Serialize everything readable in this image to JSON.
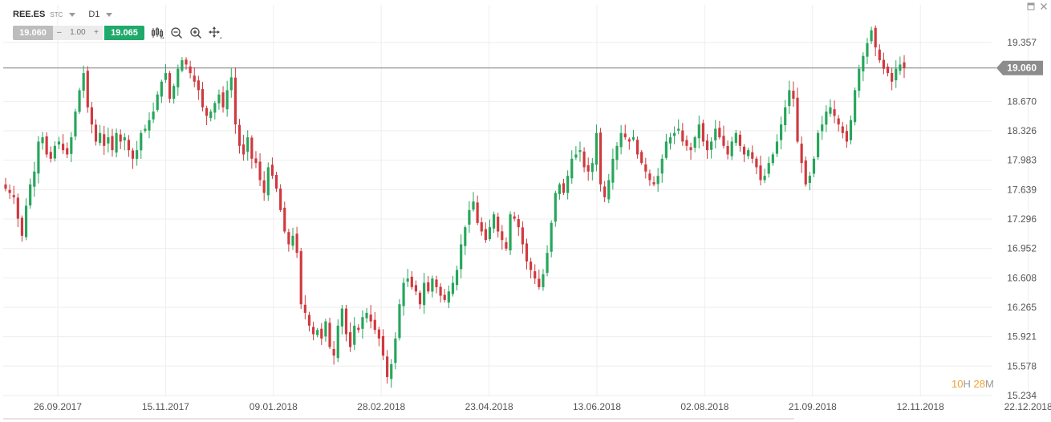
{
  "header": {
    "symbol": "REE.ES",
    "type_badge": "STC",
    "timeframe": "D1"
  },
  "trade_panel": {
    "bid": "19.060",
    "minus": "–",
    "quantity": "1.00",
    "plus": "+",
    "ask": "19.065"
  },
  "toolbar": {
    "icons": [
      "chart-type-icon",
      "zoom-out-icon",
      "zoom-in-icon",
      "crosshair-icon"
    ]
  },
  "window_controls": [
    "minimize-icon",
    "close-icon"
  ],
  "timer": {
    "hours": "10",
    "hours_unit": "H",
    "minutes": "28",
    "minutes_unit": "M"
  },
  "colors": {
    "bull": "#26a65b",
    "bear": "#d0393e",
    "price_line": "#7d7d7d",
    "price_label_bg": "#8c8c8c",
    "grid": "#eeeeee",
    "ask": "#1fa96b"
  },
  "chart_data": {
    "type": "candlestick",
    "symbol": "REE.ES",
    "timeframe": "D1",
    "current_price": 19.06,
    "current_price_label": "19.060",
    "ylim": [
      15.234,
      19.6
    ],
    "y_ticks": [
      15.234,
      15.578,
      15.921,
      16.265,
      16.608,
      16.952,
      17.296,
      17.639,
      17.983,
      18.326,
      18.67,
      19.357
    ],
    "y_tick_labels": [
      "15.234",
      "15.578",
      "15.921",
      "16.265",
      "16.608",
      "16.952",
      "17.296",
      "17.639",
      "17.983",
      "18.326",
      "18.670",
      "19.357"
    ],
    "x_tick_labels": [
      "26.09.2017",
      "15.11.2017",
      "09.01.2018",
      "28.02.2018",
      "23.04.2018",
      "13.06.2018",
      "02.08.2018",
      "21.09.2018",
      "12.11.2018",
      "22.12.2018"
    ],
    "grid": true,
    "closes": [
      17.65,
      17.6,
      17.55,
      17.3,
      17.1,
      17.45,
      17.7,
      17.85,
      18.2,
      18.25,
      18.05,
      18.0,
      18.15,
      18.2,
      18.1,
      18.05,
      18.25,
      18.55,
      18.8,
      19.0,
      18.6,
      18.4,
      18.2,
      18.3,
      18.15,
      18.25,
      18.1,
      18.3,
      18.2,
      18.25,
      18.1,
      18.0,
      18.1,
      18.3,
      18.35,
      18.45,
      18.55,
      18.75,
      18.9,
      19.0,
      18.7,
      18.85,
      19.05,
      19.15,
      19.1,
      19.0,
      18.9,
      18.8,
      18.6,
      18.5,
      18.55,
      18.65,
      18.75,
      18.6,
      18.8,
      18.95,
      18.4,
      18.15,
      18.05,
      18.25,
      18.0,
      17.95,
      17.75,
      17.6,
      17.9,
      17.8,
      17.65,
      17.4,
      17.15,
      17.0,
      17.1,
      16.9,
      16.3,
      16.2,
      16.05,
      15.95,
      16.0,
      15.9,
      16.1,
      15.8,
      15.7,
      16.05,
      16.25,
      15.95,
      15.8,
      16.05,
      16.0,
      16.15,
      16.2,
      16.1,
      16.0,
      15.9,
      15.7,
      15.45,
      15.6,
      15.9,
      16.3,
      16.55,
      16.6,
      16.5,
      16.45,
      16.3,
      16.55,
      16.45,
      16.6,
      16.5,
      16.4,
      16.35,
      16.45,
      16.55,
      16.7,
      17.0,
      17.2,
      17.4,
      17.5,
      17.25,
      17.15,
      17.05,
      17.2,
      17.35,
      17.15,
      17.05,
      16.95,
      17.35,
      17.3,
      17.2,
      17.0,
      16.8,
      16.7,
      16.6,
      16.5,
      16.65,
      16.9,
      17.25,
      17.6,
      17.7,
      17.6,
      17.8,
      18.0,
      18.05,
      18.1,
      17.9,
      17.85,
      17.95,
      18.3,
      17.7,
      17.55,
      17.75,
      18.0,
      18.15,
      18.3,
      18.25,
      18.2,
      18.25,
      18.05,
      17.95,
      17.85,
      17.75,
      17.7,
      17.8,
      18.0,
      18.2,
      18.25,
      18.3,
      18.35,
      18.2,
      18.15,
      18.1,
      18.25,
      18.4,
      18.2,
      18.1,
      18.2,
      18.35,
      18.25,
      18.15,
      18.05,
      18.2,
      18.3,
      18.15,
      18.05,
      18.1,
      18.0,
      17.9,
      17.75,
      17.8,
      17.95,
      18.05,
      18.2,
      18.4,
      18.6,
      18.8,
      18.7,
      18.2,
      17.95,
      17.7,
      17.8,
      18.0,
      18.3,
      18.4,
      18.55,
      18.6,
      18.5,
      18.4,
      18.3,
      18.2,
      18.45,
      18.8,
      19.05,
      19.2,
      19.35,
      19.5,
      19.3,
      19.15,
      19.05,
      19.0,
      18.9,
      19.05,
      19.1,
      19.06
    ]
  }
}
